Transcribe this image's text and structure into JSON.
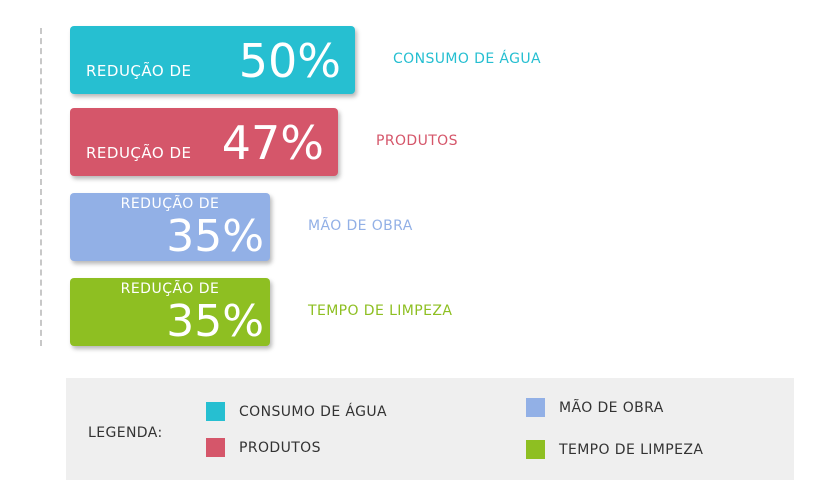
{
  "chart_data": {
    "type": "bar",
    "orientation": "horizontal",
    "categories": [
      "CONSUMO DE ÁGUA",
      "PRODUTOS",
      "MÃO DE OBRA",
      "TEMPO DE LIMPEZA"
    ],
    "values": [
      50,
      47,
      35,
      35
    ],
    "value_prefix": "REDUÇÃO DE",
    "value_labels": [
      "50%",
      "47%",
      "35%",
      "35%"
    ],
    "colors": [
      "#26bfd1",
      "#d5566a",
      "#92b0e6",
      "#8ebf22"
    ],
    "legend": {
      "title": "LEGENDA:",
      "items": [
        "CONSUMO DE ÁGUA",
        "MÃO DE OBRA",
        "PRODUTOS",
        "TEMPO DE LIMPEZA"
      ],
      "item_colors": [
        "#26bfd1",
        "#92b0e6",
        "#d5566a",
        "#8ebf22"
      ],
      "placement": "bottom"
    },
    "grid": false
  }
}
